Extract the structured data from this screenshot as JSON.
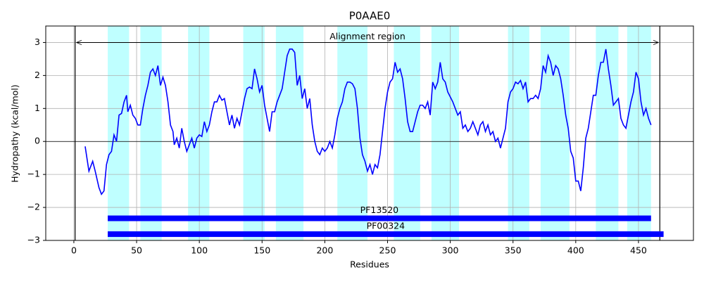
{
  "chart_data": {
    "type": "line",
    "title": "P0AAE0",
    "xlabel": "Residues",
    "ylabel": "Hydropathy (kcal/mol)",
    "xlim": [
      -22.4,
      493.8
    ],
    "ylim": [
      -3,
      3.5
    ],
    "xticks": [
      0,
      50,
      100,
      150,
      200,
      250,
      300,
      350,
      400,
      450
    ],
    "yticks": [
      {
        "value": -3,
        "label": "−3"
      },
      {
        "value": -2,
        "label": "−2"
      },
      {
        "value": -1,
        "label": "−1"
      },
      0,
      1,
      2,
      3
    ],
    "grid": true,
    "hline": 0,
    "regions": [
      [
        27,
        44
      ],
      [
        53,
        70
      ],
      [
        91,
        108
      ],
      [
        135,
        152
      ],
      [
        161,
        183
      ],
      [
        210,
        234
      ],
      [
        255,
        276
      ],
      [
        285,
        307
      ],
      [
        346,
        363
      ],
      [
        372,
        395
      ],
      [
        416,
        434
      ],
      [
        441,
        460
      ]
    ],
    "region_color": "#00ffff",
    "alignment": {
      "label": "Alignment region",
      "start": 1,
      "end": 467,
      "y": 3
    },
    "domains": [
      {
        "name": "PF13520",
        "start": 27,
        "end": 460,
        "y": -2.33
      },
      {
        "name": "PF00324",
        "start": 27,
        "end": 470,
        "y": -2.81
      }
    ],
    "domain_color": "#0000ff",
    "series": [
      {
        "name": "Hydropathy",
        "color": "#0000ff",
        "x": [
          9,
          12,
          15,
          17,
          20,
          22,
          24,
          26,
          28,
          30,
          32,
          34,
          36,
          38,
          40,
          42,
          43,
          45,
          47,
          49,
          51,
          53,
          55,
          57,
          59,
          61,
          63,
          65,
          67,
          69,
          71,
          73,
          75,
          77,
          79,
          80,
          82,
          84,
          86,
          88,
          90,
          92,
          94,
          96,
          98,
          100,
          102,
          104,
          106,
          108,
          110,
          112,
          114,
          116,
          118,
          120,
          122,
          124,
          126,
          128,
          130,
          132,
          134,
          136,
          138,
          140,
          142,
          144,
          146,
          148,
          150,
          152,
          154,
          156,
          158,
          160,
          162,
          164,
          166,
          168,
          170,
          172,
          174,
          176,
          178,
          180,
          182,
          184,
          186,
          188,
          190,
          192,
          194,
          196,
          198,
          200,
          202,
          204,
          206,
          208,
          210,
          212,
          214,
          216,
          218,
          220,
          222,
          224,
          226,
          228,
          230,
          232,
          234,
          236,
          238,
          240,
          242,
          244,
          246,
          248,
          250,
          252,
          254,
          256,
          258,
          260,
          262,
          264,
          266,
          268,
          270,
          272,
          274,
          276,
          278,
          280,
          282,
          284,
          286,
          288,
          290,
          292,
          294,
          296,
          298,
          300,
          302,
          304,
          306,
          308,
          310,
          312,
          314,
          316,
          318,
          320,
          322,
          324,
          326,
          328,
          330,
          332,
          334,
          336,
          338,
          340,
          342,
          344,
          346,
          348,
          350,
          352,
          354,
          356,
          358,
          360,
          362,
          364,
          366,
          368,
          370,
          372,
          374,
          376,
          378,
          380,
          382,
          384,
          386,
          388,
          390,
          392,
          394,
          396,
          398,
          400,
          402,
          404,
          406,
          408,
          410,
          412,
          414,
          416,
          418,
          420,
          422,
          424,
          426,
          428,
          430,
          432,
          434,
          436,
          438,
          440,
          442,
          444,
          446,
          448,
          450,
          452,
          454,
          456,
          458,
          460
        ],
        "values": [
          -0.15,
          -0.9,
          -0.6,
          -0.9,
          -1.4,
          -1.6,
          -1.5,
          -0.7,
          -0.4,
          -0.3,
          0.2,
          0.0,
          0.8,
          0.85,
          1.2,
          1.4,
          0.9,
          1.1,
          0.8,
          0.7,
          0.5,
          0.5,
          1.0,
          1.4,
          1.7,
          2.1,
          2.2,
          2.0,
          2.3,
          1.7,
          1.95,
          1.7,
          1.2,
          0.5,
          0.3,
          -0.1,
          0.1,
          -0.2,
          0.4,
          0.0,
          -0.3,
          -0.1,
          0.1,
          -0.2,
          0.1,
          0.2,
          0.15,
          0.6,
          0.3,
          0.5,
          0.9,
          1.2,
          1.2,
          1.4,
          1.25,
          1.3,
          0.9,
          0.5,
          0.8,
          0.4,
          0.7,
          0.5,
          0.9,
          1.3,
          1.6,
          1.65,
          1.6,
          2.2,
          1.9,
          1.5,
          1.7,
          1.1,
          0.7,
          0.3,
          0.9,
          0.9,
          1.2,
          1.4,
          1.6,
          2.1,
          2.6,
          2.8,
          2.8,
          2.7,
          1.7,
          2.0,
          1.3,
          1.6,
          1.0,
          1.3,
          0.5,
          0.0,
          -0.3,
          -0.4,
          -0.2,
          -0.3,
          -0.2,
          0.0,
          -0.2,
          0.2,
          0.7,
          1.0,
          1.2,
          1.6,
          1.8,
          1.8,
          1.75,
          1.6,
          1.0,
          0.1,
          -0.4,
          -0.6,
          -0.9,
          -0.7,
          -1.0,
          -0.7,
          -0.8,
          -0.4,
          0.3,
          1.0,
          1.5,
          1.8,
          1.9,
          2.4,
          2.1,
          2.2,
          1.9,
          1.3,
          0.6,
          0.3,
          0.3,
          0.6,
          0.9,
          1.1,
          1.1,
          1.0,
          1.2,
          0.8,
          1.8,
          1.6,
          1.8,
          2.4,
          1.9,
          1.8,
          1.5,
          1.35,
          1.2,
          1.0,
          0.8,
          0.9,
          0.4,
          0.5,
          0.3,
          0.4,
          0.6,
          0.4,
          0.2,
          0.5,
          0.6,
          0.3,
          0.5,
          0.2,
          0.3,
          0.0,
          0.1,
          -0.2,
          0.1,
          0.4,
          1.2,
          1.5,
          1.6,
          1.8,
          1.75,
          1.85,
          1.6,
          1.8,
          1.2,
          1.3,
          1.3,
          1.4,
          1.3,
          1.6,
          2.3,
          2.1,
          2.6,
          2.4,
          2.0,
          2.3,
          2.2,
          1.9,
          1.4,
          0.8,
          0.4,
          -0.3,
          -0.5,
          -1.2,
          -1.2,
          -1.5,
          -0.8,
          0.1,
          0.4,
          0.9,
          1.4,
          1.4,
          2.0,
          2.4,
          2.4,
          2.8,
          2.2,
          1.7,
          1.1,
          1.2,
          1.3,
          0.7,
          0.5,
          0.4,
          0.8,
          1.2,
          1.5,
          2.1,
          1.9,
          1.2,
          0.8,
          1.0,
          0.7,
          0.5
        ]
      }
    ]
  }
}
